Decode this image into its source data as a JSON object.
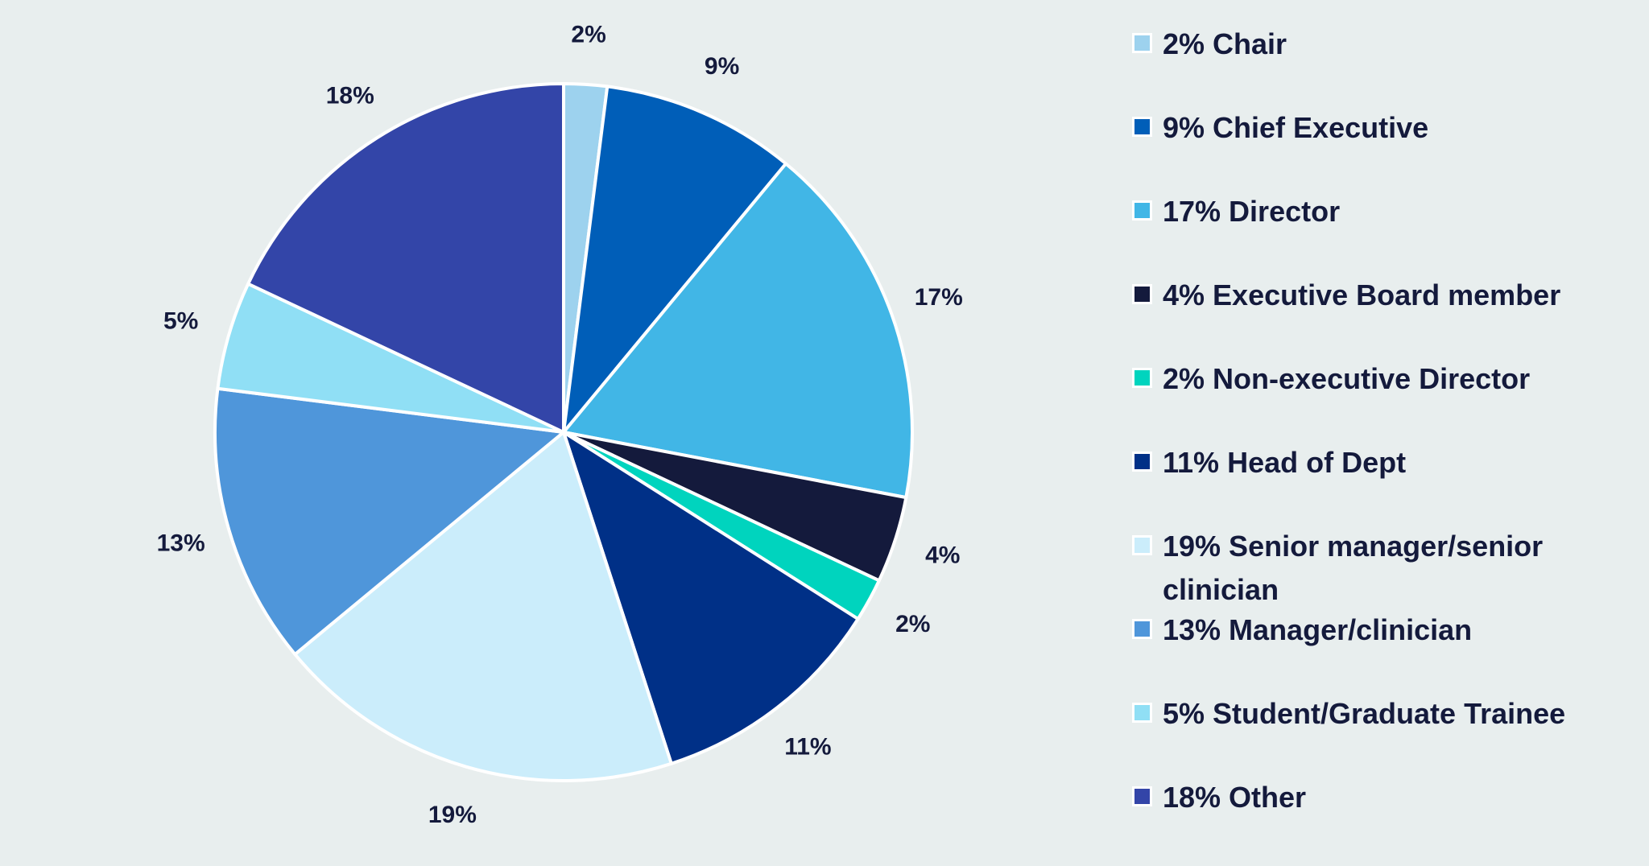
{
  "chart_data": {
    "type": "pie",
    "title": "",
    "slices": [
      {
        "label": "Chair",
        "value": 2,
        "value_label": "2%",
        "legend_label": "2% Chair",
        "color": "#9DD2EE"
      },
      {
        "label": "Chief Executive",
        "value": 9,
        "value_label": "9%",
        "legend_label": "9% Chief Executive",
        "color": "#005EB8"
      },
      {
        "label": "Director",
        "value": 17,
        "value_label": "17%",
        "legend_label": "17% Director",
        "color": "#41B6E6"
      },
      {
        "label": "Executive Board member",
        "value": 4,
        "value_label": "4%",
        "legend_label": "4% Executive Board member",
        "color": "#141A3C"
      },
      {
        "label": "Non-executive Director",
        "value": 2,
        "value_label": "2%",
        "legend_label": "2% Non-executive Director",
        "color": "#00D4BE"
      },
      {
        "label": "Head of Dept",
        "value": 11,
        "value_label": "11%",
        "legend_label": "11% Head of Dept",
        "color": "#003087"
      },
      {
        "label": "Senior manager/senior clinician",
        "value": 19,
        "value_label": "19%",
        "legend_label": "19% Senior manager/senior clinician",
        "color": "#CBEDFB"
      },
      {
        "label": "Manager/clinician",
        "value": 13,
        "value_label": "13%",
        "legend_label": "13% Manager/clinician",
        "color": "#4F96DA"
      },
      {
        "label": "Student/Graduate Trainee",
        "value": 5,
        "value_label": "5%",
        "legend_label": "5% Student/Graduate Trainee",
        "color": "#90DFF5"
      },
      {
        "label": "Other",
        "value": 18,
        "value_label": "18%",
        "legend_label": "18% Other",
        "color": "#3345A8"
      }
    ],
    "legend_position": "right"
  },
  "colors": {
    "background": "#E8EEEE",
    "text": "#141A3C",
    "slice_border": "#FFFFFF"
  }
}
